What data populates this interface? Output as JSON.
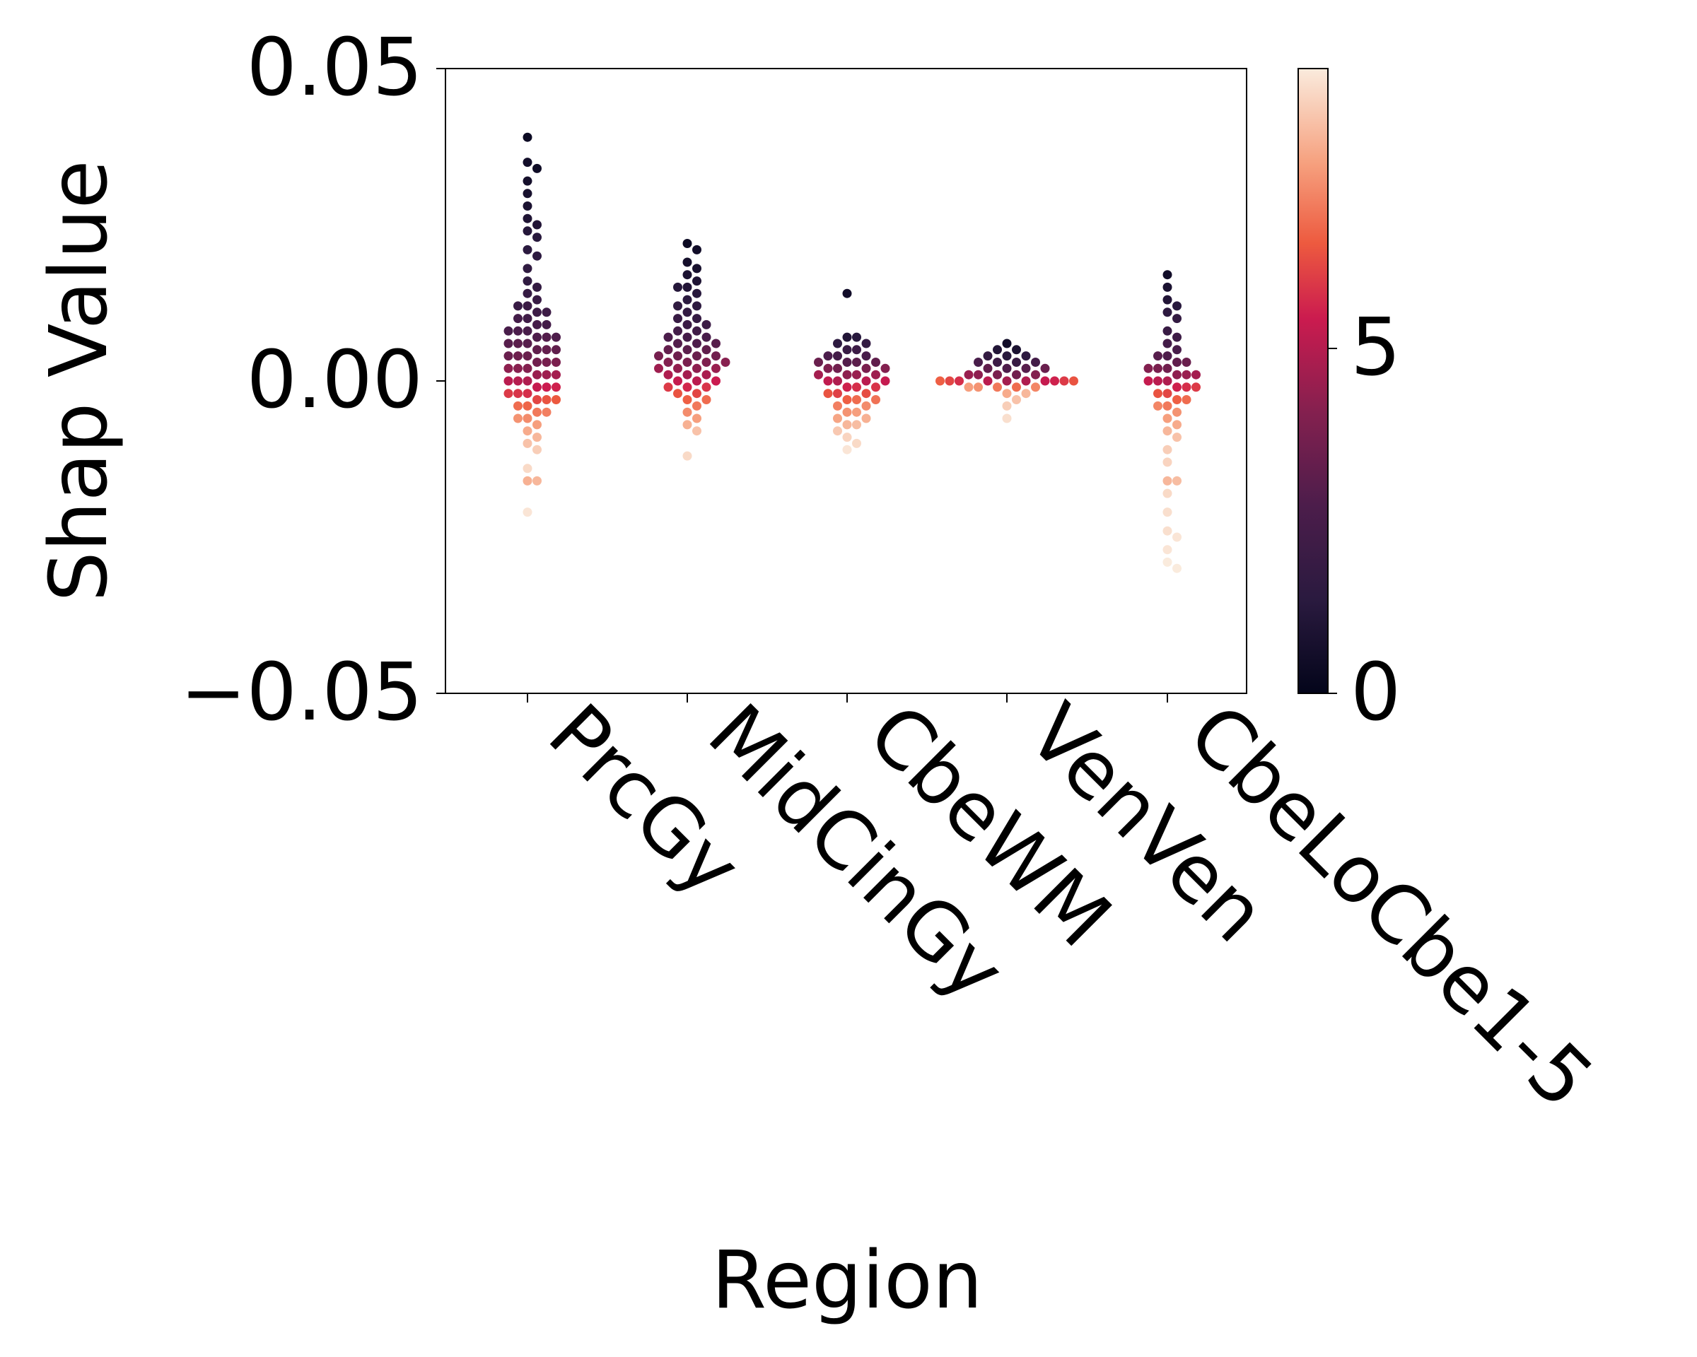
{
  "chart_data": {
    "type": "scatter",
    "subtype": "swarm",
    "title": "",
    "xlabel": "Region",
    "ylabel": "Shap Value",
    "categories": [
      "PrcGy",
      "MidCinGy",
      "CbeWM",
      "VenVen",
      "CbeLoCbe1-5"
    ],
    "ylim": [
      -0.05,
      0.05
    ],
    "yticks": [
      -0.05,
      0.0,
      0.05
    ],
    "ytick_labels": [
      "−0.05",
      "0.00",
      "0.05"
    ],
    "grid": false,
    "colorbar": {
      "colormap": "rocket",
      "range": [
        0,
        8.5
      ],
      "ticks": [
        0,
        5
      ],
      "tick_labels": [
        "0",
        "5"
      ]
    },
    "series": [
      {
        "category": "PrcGy",
        "points": [
          [
            0.039,
            0.3
          ],
          [
            0.035,
            0.5
          ],
          [
            0.034,
            0.4
          ],
          [
            0.032,
            0.6
          ],
          [
            0.03,
            0.7
          ],
          [
            0.028,
            0.8
          ],
          [
            0.026,
            0.9
          ],
          [
            0.025,
            1.0
          ],
          [
            0.024,
            1.1
          ],
          [
            0.023,
            1.2
          ],
          [
            0.021,
            1.3
          ],
          [
            0.02,
            1.4
          ],
          [
            0.018,
            1.5
          ],
          [
            0.016,
            1.5
          ],
          [
            0.015,
            1.6
          ],
          [
            0.014,
            1.7
          ],
          [
            0.013,
            1.8
          ],
          [
            0.012,
            1.9
          ],
          [
            0.012,
            1.8
          ],
          [
            0.011,
            2.0
          ],
          [
            0.011,
            2.0
          ],
          [
            0.01,
            2.1
          ],
          [
            0.01,
            2.2
          ],
          [
            0.009,
            2.3
          ],
          [
            0.009,
            2.2
          ],
          [
            0.008,
            2.4
          ],
          [
            0.008,
            2.5
          ],
          [
            0.008,
            2.4
          ],
          [
            0.007,
            2.6
          ],
          [
            0.007,
            2.7
          ],
          [
            0.007,
            2.6
          ],
          [
            0.006,
            2.8
          ],
          [
            0.006,
            2.9
          ],
          [
            0.006,
            2.8
          ],
          [
            0.005,
            3.0
          ],
          [
            0.005,
            3.1
          ],
          [
            0.005,
            3.0
          ],
          [
            0.004,
            3.2
          ],
          [
            0.004,
            3.3
          ],
          [
            0.004,
            3.2
          ],
          [
            0.003,
            3.4
          ],
          [
            0.003,
            3.5
          ],
          [
            0.003,
            3.6
          ],
          [
            0.002,
            3.8
          ],
          [
            0.002,
            3.9
          ],
          [
            0.002,
            4.0
          ],
          [
            0.001,
            4.2
          ],
          [
            0.001,
            4.3
          ],
          [
            0.001,
            4.4
          ],
          [
            0.0,
            4.6
          ],
          [
            0.0,
            4.7
          ],
          [
            0.0,
            4.8
          ],
          [
            -0.001,
            5.0
          ],
          [
            -0.001,
            5.1
          ],
          [
            -0.001,
            5.2
          ],
          [
            -0.002,
            5.4
          ],
          [
            -0.002,
            5.5
          ],
          [
            -0.002,
            5.6
          ],
          [
            -0.003,
            5.8
          ],
          [
            -0.003,
            6.0
          ],
          [
            -0.003,
            6.1
          ],
          [
            -0.004,
            6.3
          ],
          [
            -0.004,
            6.4
          ],
          [
            -0.005,
            6.6
          ],
          [
            -0.005,
            6.7
          ],
          [
            -0.006,
            6.9
          ],
          [
            -0.006,
            7.0
          ],
          [
            -0.007,
            7.2
          ],
          [
            -0.008,
            7.4
          ],
          [
            -0.009,
            7.6
          ],
          [
            -0.01,
            7.8
          ],
          [
            -0.011,
            8.0
          ],
          [
            -0.014,
            8.2
          ],
          [
            -0.016,
            7.5
          ],
          [
            -0.016,
            7.6
          ],
          [
            -0.021,
            8.4
          ]
        ]
      },
      {
        "category": "MidCinGy",
        "points": [
          [
            0.022,
            0.3
          ],
          [
            0.021,
            0.5
          ],
          [
            0.019,
            0.6
          ],
          [
            0.018,
            0.7
          ],
          [
            0.017,
            0.8
          ],
          [
            0.016,
            0.9
          ],
          [
            0.015,
            1.0
          ],
          [
            0.015,
            1.1
          ],
          [
            0.014,
            1.2
          ],
          [
            0.013,
            1.3
          ],
          [
            0.012,
            1.4
          ],
          [
            0.012,
            1.5
          ],
          [
            0.011,
            1.6
          ],
          [
            0.01,
            1.7
          ],
          [
            0.01,
            1.8
          ],
          [
            0.009,
            1.9
          ],
          [
            0.009,
            2.0
          ],
          [
            0.008,
            2.1
          ],
          [
            0.008,
            2.2
          ],
          [
            0.007,
            2.3
          ],
          [
            0.007,
            2.4
          ],
          [
            0.007,
            2.5
          ],
          [
            0.006,
            2.6
          ],
          [
            0.006,
            2.7
          ],
          [
            0.006,
            2.8
          ],
          [
            0.005,
            2.9
          ],
          [
            0.005,
            3.0
          ],
          [
            0.005,
            3.1
          ],
          [
            0.004,
            3.2
          ],
          [
            0.004,
            3.3
          ],
          [
            0.004,
            3.4
          ],
          [
            0.004,
            3.5
          ],
          [
            0.003,
            3.6
          ],
          [
            0.003,
            3.7
          ],
          [
            0.003,
            3.8
          ],
          [
            0.003,
            3.9
          ],
          [
            0.002,
            4.0
          ],
          [
            0.002,
            4.1
          ],
          [
            0.002,
            4.2
          ],
          [
            0.002,
            4.3
          ],
          [
            0.001,
            4.4
          ],
          [
            0.001,
            4.5
          ],
          [
            0.001,
            4.6
          ],
          [
            0.0,
            4.8
          ],
          [
            0.0,
            5.0
          ],
          [
            0.0,
            5.1
          ],
          [
            -0.001,
            5.3
          ],
          [
            -0.001,
            5.5
          ],
          [
            -0.001,
            5.6
          ],
          [
            -0.002,
            5.8
          ],
          [
            -0.002,
            6.0
          ],
          [
            -0.003,
            6.2
          ],
          [
            -0.003,
            6.4
          ],
          [
            -0.004,
            6.6
          ],
          [
            -0.005,
            6.9
          ],
          [
            -0.006,
            7.2
          ],
          [
            -0.007,
            7.5
          ],
          [
            -0.008,
            7.8
          ],
          [
            -0.012,
            8.2
          ]
        ]
      },
      {
        "category": "CbeWM",
        "points": [
          [
            0.014,
            0.5
          ],
          [
            0.007,
            1.0
          ],
          [
            0.007,
            1.2
          ],
          [
            0.006,
            1.4
          ],
          [
            0.006,
            1.6
          ],
          [
            0.005,
            1.8
          ],
          [
            0.005,
            2.0
          ],
          [
            0.004,
            2.2
          ],
          [
            0.004,
            2.4
          ],
          [
            0.004,
            2.5
          ],
          [
            0.003,
            2.7
          ],
          [
            0.003,
            2.9
          ],
          [
            0.003,
            3.0
          ],
          [
            0.003,
            3.2
          ],
          [
            0.002,
            3.4
          ],
          [
            0.002,
            3.6
          ],
          [
            0.002,
            3.7
          ],
          [
            0.002,
            3.8
          ],
          [
            0.001,
            4.0
          ],
          [
            0.001,
            4.2
          ],
          [
            0.001,
            4.3
          ],
          [
            0.001,
            4.4
          ],
          [
            0.0,
            4.6
          ],
          [
            0.0,
            4.8
          ],
          [
            0.0,
            4.9
          ],
          [
            0.0,
            5.0
          ],
          [
            -0.001,
            5.2
          ],
          [
            -0.001,
            5.4
          ],
          [
            -0.001,
            5.5
          ],
          [
            -0.002,
            5.7
          ],
          [
            -0.002,
            5.9
          ],
          [
            -0.002,
            6.0
          ],
          [
            -0.003,
            6.2
          ],
          [
            -0.003,
            6.4
          ],
          [
            -0.003,
            6.5
          ],
          [
            -0.004,
            6.7
          ],
          [
            -0.004,
            6.9
          ],
          [
            -0.005,
            7.0
          ],
          [
            -0.005,
            7.2
          ],
          [
            -0.006,
            7.3
          ],
          [
            -0.006,
            7.5
          ],
          [
            -0.007,
            7.6
          ],
          [
            -0.007,
            7.7
          ],
          [
            -0.008,
            7.9
          ],
          [
            -0.009,
            8.1
          ],
          [
            -0.01,
            8.2
          ],
          [
            -0.011,
            8.4
          ]
        ]
      },
      {
        "category": "VenVen",
        "points": [
          [
            0.006,
            0.5
          ],
          [
            0.005,
            0.8
          ],
          [
            0.005,
            1.0
          ],
          [
            0.004,
            1.2
          ],
          [
            0.004,
            1.4
          ],
          [
            0.004,
            1.6
          ],
          [
            0.003,
            1.8
          ],
          [
            0.003,
            2.0
          ],
          [
            0.003,
            2.2
          ],
          [
            0.003,
            2.4
          ],
          [
            0.002,
            2.6
          ],
          [
            0.002,
            2.8
          ],
          [
            0.002,
            3.0
          ],
          [
            0.002,
            3.2
          ],
          [
            0.001,
            3.4
          ],
          [
            0.001,
            3.6
          ],
          [
            0.001,
            3.8
          ],
          [
            0.001,
            4.0
          ],
          [
            0.001,
            4.2
          ],
          [
            0.0,
            4.4
          ],
          [
            0.0,
            4.6
          ],
          [
            0.0,
            4.8
          ],
          [
            0.0,
            5.0
          ],
          [
            0.0,
            5.2
          ],
          [
            0.0,
            5.4
          ],
          [
            0.0,
            5.6
          ],
          [
            0.0,
            5.8
          ],
          [
            0.0,
            6.0
          ],
          [
            0.0,
            6.2
          ],
          [
            -0.001,
            6.4
          ],
          [
            -0.001,
            6.6
          ],
          [
            -0.001,
            6.8
          ],
          [
            -0.001,
            7.0
          ],
          [
            -0.001,
            7.2
          ],
          [
            -0.002,
            7.4
          ],
          [
            -0.002,
            7.6
          ],
          [
            -0.003,
            7.8
          ],
          [
            -0.004,
            8.0
          ],
          [
            -0.006,
            8.3
          ]
        ]
      },
      {
        "category": "CbeLoCbe1-5",
        "points": [
          [
            0.017,
            0.5
          ],
          [
            0.015,
            0.8
          ],
          [
            0.013,
            1.0
          ],
          [
            0.012,
            1.2
          ],
          [
            0.011,
            1.4
          ],
          [
            0.01,
            1.6
          ],
          [
            0.008,
            1.8
          ],
          [
            0.007,
            2.0
          ],
          [
            0.006,
            2.2
          ],
          [
            0.005,
            2.4
          ],
          [
            0.004,
            2.6
          ],
          [
            0.004,
            2.8
          ],
          [
            0.003,
            3.0
          ],
          [
            0.003,
            3.2
          ],
          [
            0.002,
            3.4
          ],
          [
            0.002,
            3.6
          ],
          [
            0.002,
            3.8
          ],
          [
            0.001,
            4.0
          ],
          [
            0.001,
            4.2
          ],
          [
            0.001,
            4.4
          ],
          [
            0.0,
            4.6
          ],
          [
            0.0,
            4.8
          ],
          [
            0.0,
            5.0
          ],
          [
            -0.001,
            5.2
          ],
          [
            -0.001,
            5.4
          ],
          [
            -0.001,
            5.6
          ],
          [
            -0.002,
            5.8
          ],
          [
            -0.002,
            6.0
          ],
          [
            -0.003,
            6.2
          ],
          [
            -0.003,
            6.4
          ],
          [
            -0.004,
            6.6
          ],
          [
            -0.004,
            6.8
          ],
          [
            -0.005,
            7.0
          ],
          [
            -0.006,
            7.2
          ],
          [
            -0.007,
            7.4
          ],
          [
            -0.008,
            7.6
          ],
          [
            -0.009,
            7.8
          ],
          [
            -0.011,
            8.0
          ],
          [
            -0.013,
            8.1
          ],
          [
            -0.016,
            7.6
          ],
          [
            -0.016,
            7.7
          ],
          [
            -0.018,
            8.2
          ],
          [
            -0.021,
            8.3
          ],
          [
            -0.024,
            8.3
          ],
          [
            -0.025,
            8.4
          ],
          [
            -0.027,
            8.4
          ],
          [
            -0.029,
            8.5
          ],
          [
            -0.03,
            8.5
          ]
        ]
      }
    ]
  }
}
